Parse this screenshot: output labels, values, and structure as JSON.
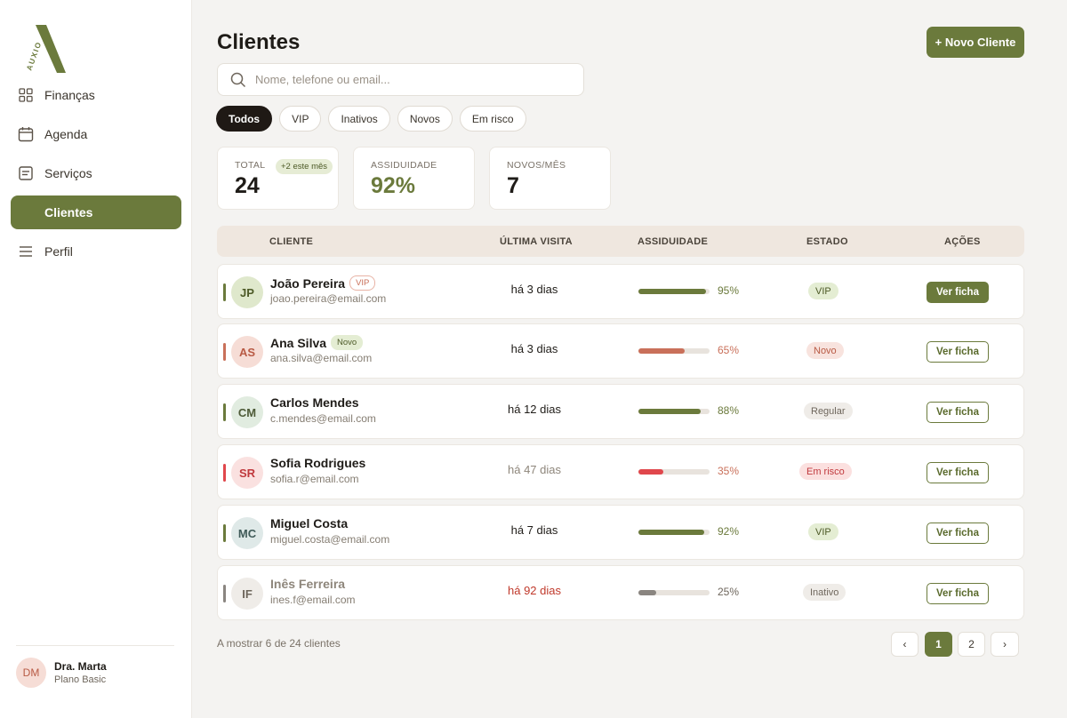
{
  "brand": {
    "name": "AUXIO"
  },
  "sidebar": {
    "items": [
      {
        "label": "Finanças",
        "icon": "grid-icon"
      },
      {
        "label": "Agenda",
        "icon": "calendar-icon"
      },
      {
        "label": "Serviços",
        "icon": "document-icon"
      },
      {
        "label": "Clientes",
        "icon": "users-icon",
        "active": true
      },
      {
        "label": "Perfil",
        "icon": "menu-icon"
      }
    ],
    "user": {
      "initials": "DM",
      "name": "Dra. Marta",
      "plan": "Plano Basic"
    }
  },
  "header": {
    "title": "Clientes",
    "new_button": "+ Novo Cliente"
  },
  "search": {
    "placeholder": "Nome, telefone ou email..."
  },
  "filters": [
    "Todos",
    "VIP",
    "Inativos",
    "Novos",
    "Em risco"
  ],
  "stats": {
    "total": {
      "label": "TOTAL",
      "value": "24",
      "badge": "+2 este mês"
    },
    "assiduidade": {
      "label": "ASSIDUIDADE",
      "value": "92%"
    },
    "novos": {
      "label": "NOVOS/MÊS",
      "value": "7"
    }
  },
  "table": {
    "headers": {
      "client": "CLIENTE",
      "last_visit": "ÚLTIMA VISITA",
      "attendance": "ASSIDUIDADE",
      "status": "ESTADO",
      "actions": "AÇÕES"
    },
    "rows": [
      {
        "initials": "JP",
        "name": "João Pereira",
        "tag": "VIP",
        "email": "joao.pereira@email.com",
        "last_visit": "há 3 dias",
        "attendance": 95,
        "attendance_label": "95%",
        "status": "VIP",
        "action": "Ver ficha"
      },
      {
        "initials": "AS",
        "name": "Ana Silva",
        "tag": "Novo",
        "email": "ana.silva@email.com",
        "last_visit": "há 3 dias",
        "attendance": 65,
        "attendance_label": "65%",
        "status": "Novo",
        "action": "Ver ficha"
      },
      {
        "initials": "CM",
        "name": "Carlos Mendes",
        "tag": "",
        "email": "c.mendes@email.com",
        "last_visit": "há 12 dias",
        "attendance": 88,
        "attendance_label": "88%",
        "status": "Regular",
        "action": "Ver ficha"
      },
      {
        "initials": "SR",
        "name": "Sofia Rodrigues",
        "tag": "",
        "email": "sofia.r@email.com",
        "last_visit": "há 47 dias",
        "attendance": 35,
        "attendance_label": "35%",
        "status": "Em risco",
        "action": "Ver ficha"
      },
      {
        "initials": "MC",
        "name": "Miguel Costa",
        "tag": "",
        "email": "miguel.costa@email.com",
        "last_visit": "há 7 dias",
        "attendance": 92,
        "attendance_label": "92%",
        "status": "VIP",
        "action": "Ver ficha"
      },
      {
        "initials": "IF",
        "name": "Inês Ferreira",
        "tag": "",
        "email": "ines.f@email.com",
        "last_visit": "há 92 dias",
        "attendance": 25,
        "attendance_label": "25%",
        "status": "Inativo",
        "action": "Ver ficha"
      }
    ]
  },
  "footer": {
    "info": "A mostrar 6 de 24 clientes",
    "prev": "‹",
    "pages": [
      "1",
      "2"
    ],
    "next": "›"
  },
  "colors": {
    "accent": "#6b7a3c",
    "risk": "#e0474c",
    "warm": "#c9705a",
    "inactive": "#8a8580"
  }
}
